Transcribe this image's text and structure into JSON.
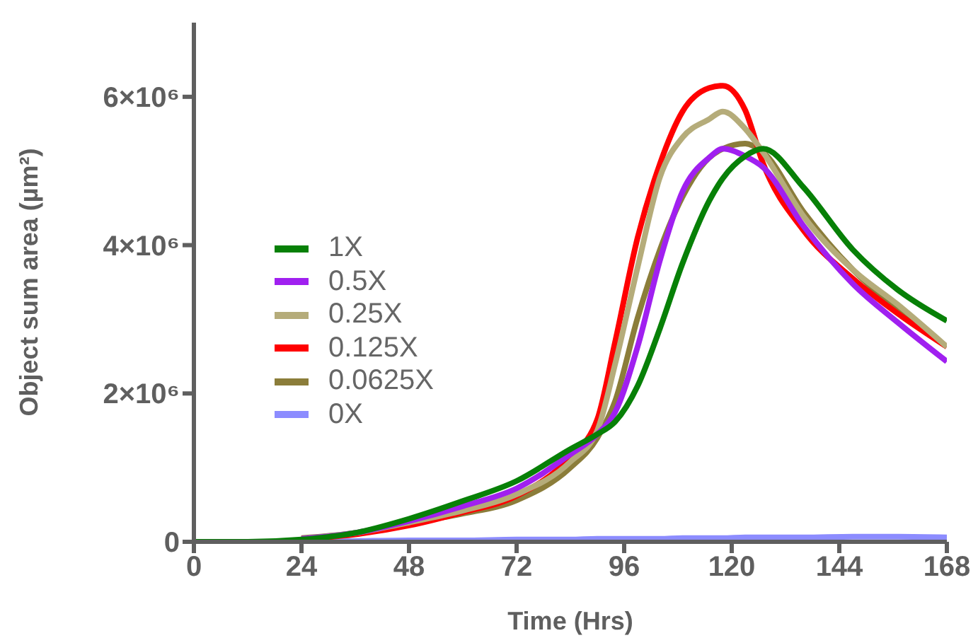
{
  "chart_data": {
    "type": "line",
    "xlabel": "Time (Hrs)",
    "ylabel": "Object sum area (µm²)",
    "x": [
      0,
      12,
      24,
      36,
      48,
      60,
      72,
      84,
      90,
      94,
      99,
      104,
      109,
      115,
      118,
      123,
      127,
      136,
      147,
      157,
      168
    ],
    "series": [
      {
        "name": "1X",
        "color": "#078007",
        "values": [
          0,
          0,
          30000,
          120000,
          310000,
          550000,
          820000,
          1250000,
          1450000,
          1620000,
          2100000,
          2880000,
          3750000,
          4600000,
          4900000,
          5200000,
          5300000,
          4780000,
          3940000,
          3400000,
          2980000
        ]
      },
      {
        "name": "0.5X",
        "color": "#a020f0",
        "values": [
          null,
          null,
          40000,
          120000,
          280000,
          480000,
          720000,
          1180000,
          1450000,
          1750000,
          2630000,
          3800000,
          4720000,
          5180000,
          5300000,
          5200000,
          5050000,
          4260000,
          3480000,
          2960000,
          2430000
        ]
      },
      {
        "name": "0.25X",
        "color": "#b5ac7a",
        "values": [
          null,
          null,
          40000,
          120000,
          260000,
          420000,
          640000,
          1080000,
          1500000,
          2400000,
          3700000,
          4920000,
          5450000,
          5700000,
          5800000,
          5570000,
          5250000,
          4390000,
          3670000,
          3200000,
          2630000
        ]
      },
      {
        "name": "0.125X",
        "color": "#ff0000",
        "values": [
          null,
          null,
          40000,
          100000,
          220000,
          400000,
          620000,
          1150000,
          1650000,
          2700000,
          4100000,
          5100000,
          5800000,
          6120000,
          6150000,
          5820000,
          5100000,
          4200000,
          3550000,
          3080000,
          2630000
        ]
      },
      {
        "name": "0.0625X",
        "color": "#8b7d3a",
        "values": [
          null,
          null,
          50000,
          120000,
          250000,
          380000,
          560000,
          1000000,
          1400000,
          1900000,
          3020000,
          3940000,
          4650000,
          5180000,
          5300000,
          5370000,
          5250000,
          4450000,
          3670000,
          3140000,
          2630000
        ]
      },
      {
        "name": "0X",
        "color": "#8c8cff",
        "values": [
          null,
          null,
          0,
          10000,
          20000,
          20000,
          30000,
          30000,
          40000,
          40000,
          40000,
          40000,
          50000,
          50000,
          50000,
          60000,
          60000,
          60000,
          70000,
          70000,
          60000
        ]
      }
    ],
    "xlim": [
      0,
      168
    ],
    "xticks": [
      0,
      24,
      48,
      72,
      96,
      120,
      144,
      168
    ],
    "ylim": [
      0,
      7000000
    ],
    "yticks": [
      {
        "value": 0,
        "label": "0"
      },
      {
        "value": 2000000,
        "label": "2×10⁶"
      },
      {
        "value": 4000000,
        "label": "4×10⁶"
      },
      {
        "value": 6000000,
        "label": "6×10⁶"
      }
    ],
    "grid": false,
    "legend": "left",
    "marker": "none",
    "line_style": "solid"
  }
}
